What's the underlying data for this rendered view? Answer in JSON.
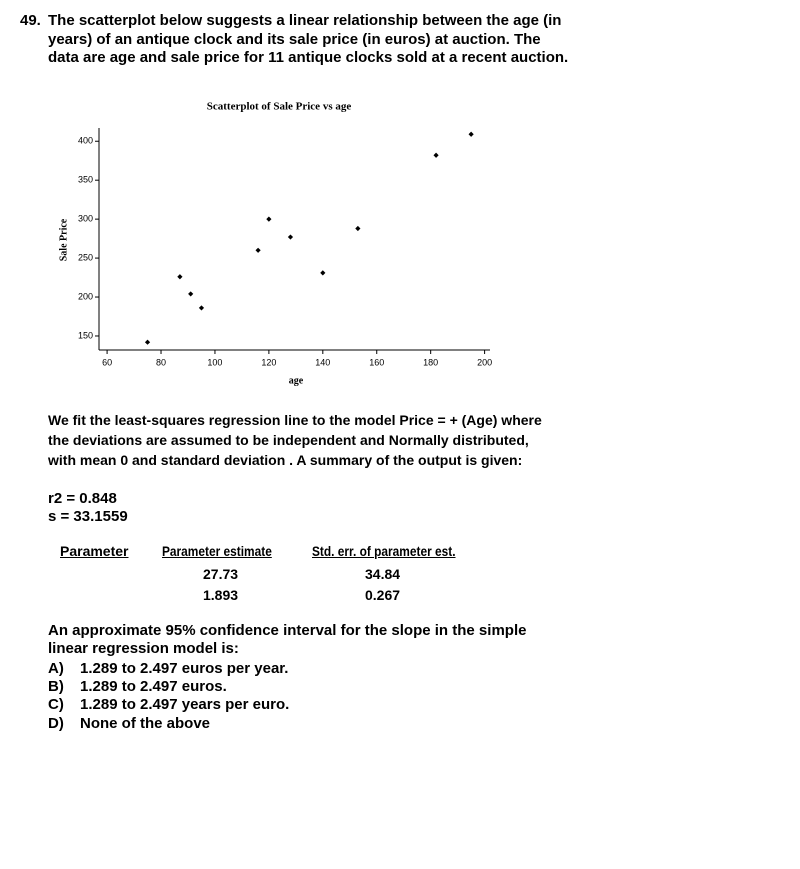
{
  "question": {
    "number": "49.",
    "lines": [
      "The scatterplot below suggests a linear relationship between the age (in",
      "years) of an antique clock and its sale price (in euros) at auction. The",
      "data are age and sale price for 11 antique clocks sold at a recent auction."
    ]
  },
  "chart_data": {
    "type": "scatter",
    "title": "Scatterplot of Sale Price vs age",
    "x_label": "age",
    "y_label": "Sale Price",
    "series": [
      {
        "name": "Sale Price",
        "color": "#000000",
        "x": [
          75,
          87,
          91,
          95,
          116,
          120,
          128,
          140,
          153,
          182,
          195
        ],
        "values": [
          142,
          226,
          204,
          186,
          260,
          300,
          277,
          231,
          288,
          382,
          409
        ]
      }
    ],
    "xlim": [
      57,
      202
    ],
    "ylim": [
      132,
      417
    ],
    "xticks": [
      60,
      80,
      100,
      120,
      140,
      160,
      180,
      200
    ],
    "yticks": [
      150,
      200,
      250,
      300,
      350,
      400
    ]
  },
  "paragraph": [
    "We fit the least-squares  regression  line to the model Price = + (Age) where",
    "the deviations  are assumed to be independent  and Normally distributed,",
    "with mean 0 and standard  deviation . A summary  of the output is given:"
  ],
  "stats": [
    "r2 = 0.848",
    "s = 33.1559"
  ],
  "table": {
    "headers": [
      "Parameter",
      "Parameter estimate",
      "Std. err. of parameter est."
    ],
    "rows": [
      [
        "27.73",
        "34.84"
      ],
      [
        "1.893",
        "0.267"
      ]
    ]
  },
  "prompt": [
    "An approximate 95% confidence interval for the slope in the simple",
    "linear regression model is:"
  ],
  "options": [
    {
      "letter": "A)",
      "text": "1.289 to 2.497 euros per year."
    },
    {
      "letter": "B)",
      "text": "1.289 to 2.497 euros."
    },
    {
      "letter": "C)",
      "text": "1.289 to 2.497 years per euro."
    },
    {
      "letter": "D)",
      "text": "None of the above"
    }
  ]
}
